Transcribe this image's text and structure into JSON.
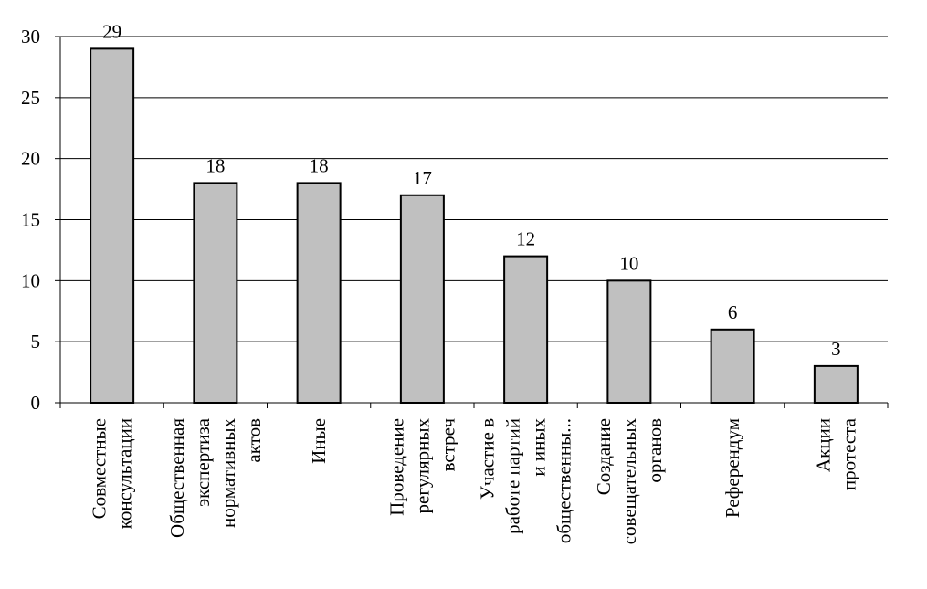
{
  "chart_data": {
    "type": "bar",
    "categories": [
      [
        "Совместные",
        "консультации"
      ],
      [
        "Общественная",
        "экспертиза",
        "нормативных",
        "актов"
      ],
      [
        "Иные"
      ],
      [
        "Проведение",
        "регулярных",
        "встреч"
      ],
      [
        "Участие в",
        "работе партий",
        "и иных",
        "общественны..."
      ],
      [
        "Создание",
        "совещательных",
        "органов"
      ],
      [
        "Референдум"
      ],
      [
        "Акции",
        "протеста"
      ]
    ],
    "values": [
      29,
      18,
      18,
      17,
      12,
      10,
      6,
      3
    ],
    "ylim": [
      0,
      30
    ],
    "yticks": [
      0,
      5,
      10,
      15,
      20,
      25,
      30
    ],
    "grid": true,
    "bar_color": "#c0c0c0",
    "bar_edge_color": "#000000"
  }
}
